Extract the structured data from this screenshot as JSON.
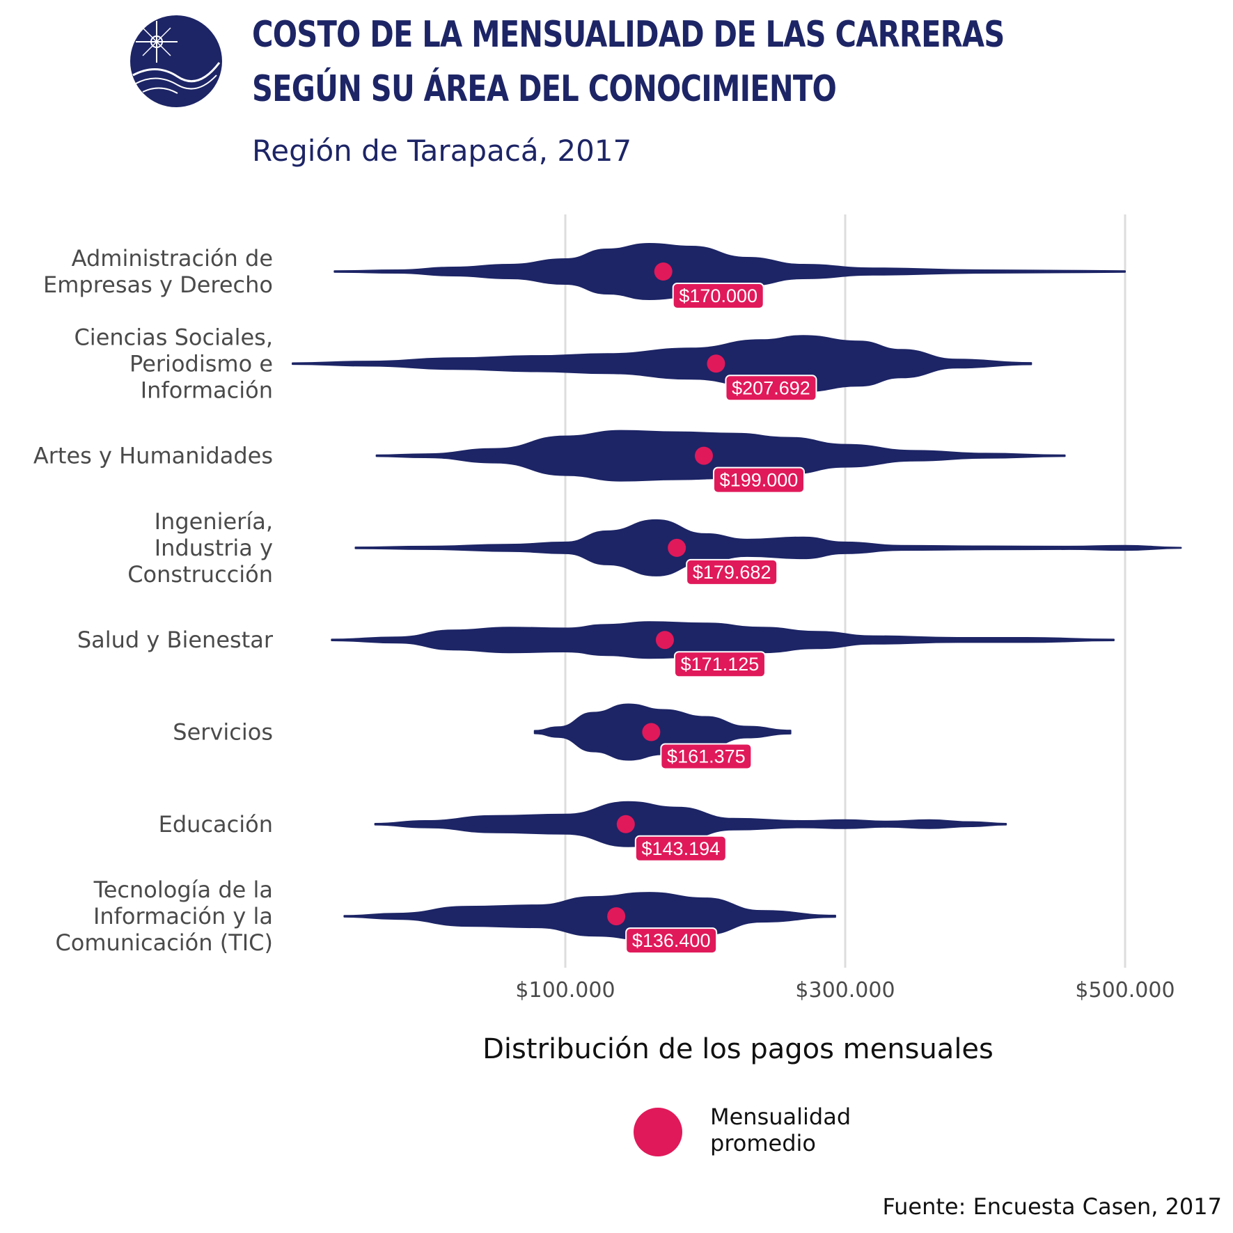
{
  "header": {
    "title_line1": "COSTO DE LA MENSUALIDAD DE LAS CARRERAS",
    "title_line2": "SEGÚN SU ÁREA DEL CONOCIMIENTO",
    "subtitle": "Región de Tarapacá, 2017"
  },
  "colors": {
    "violin": "#1d2566",
    "mean_point": "#e0195a",
    "grid": "#dddddd"
  },
  "legend": {
    "line1": "Mensualidad",
    "line2": "promedio"
  },
  "source": "Fuente: Encuesta Casen, 2017",
  "chart_data": {
    "type": "violin",
    "title": "COSTO DE LA MENSUALIDAD DE LAS CARRERAS SEGÚN SU ÁREA DEL CONOCIMIENTO",
    "subtitle": "Región de Tarapacá, 2017",
    "xlabel": "Distribución de los pagos mensuales",
    "ylabel": "",
    "xticks": [
      100000,
      300000,
      500000
    ],
    "xtick_labels": [
      "$100.000",
      "$300.000",
      "$500.000"
    ],
    "grid": true,
    "legend_position": "bottom",
    "legend_entries": [
      "Mensualidad promedio"
    ],
    "categories": [
      {
        "label_lines": [
          "Administración de",
          "Empresas y Derecho"
        ],
        "min": -65000,
        "max": 500000,
        "mean": 170000,
        "mean_label": "$170.000",
        "density": [
          [
            -65000,
            0.02
          ],
          [
            -20000,
            0.05
          ],
          [
            20000,
            0.15
          ],
          [
            60000,
            0.25
          ],
          [
            100000,
            0.45
          ],
          [
            130000,
            0.8
          ],
          [
            160000,
            1.0
          ],
          [
            190000,
            0.9
          ],
          [
            230000,
            0.5
          ],
          [
            270000,
            0.25
          ],
          [
            320000,
            0.12
          ],
          [
            400000,
            0.05
          ],
          [
            470000,
            0.03
          ],
          [
            500000,
            0.02
          ]
        ]
      },
      {
        "label_lines": [
          "Ciencias Sociales,",
          "Periodismo e",
          "Información"
        ],
        "min": -95000,
        "max": 433000,
        "mean": 207692,
        "mean_label": "$207.692",
        "density": [
          [
            -95000,
            0.02
          ],
          [
            -40000,
            0.08
          ],
          [
            20000,
            0.2
          ],
          [
            80000,
            0.28
          ],
          [
            130000,
            0.35
          ],
          [
            190000,
            0.55
          ],
          [
            240000,
            0.85
          ],
          [
            270000,
            1.0
          ],
          [
            310000,
            0.8
          ],
          [
            340000,
            0.5
          ],
          [
            380000,
            0.15
          ],
          [
            433000,
            0.03
          ]
        ]
      },
      {
        "label_lines": [
          "Artes y Humanidades"
        ],
        "min": -35000,
        "max": 457000,
        "mean": 199000,
        "mean_label": "$199.000",
        "density": [
          [
            -35000,
            0.02
          ],
          [
            0,
            0.06
          ],
          [
            50000,
            0.25
          ],
          [
            100000,
            0.7
          ],
          [
            140000,
            0.9
          ],
          [
            180000,
            0.85
          ],
          [
            220000,
            0.8
          ],
          [
            260000,
            0.65
          ],
          [
            300000,
            0.4
          ],
          [
            350000,
            0.18
          ],
          [
            400000,
            0.08
          ],
          [
            457000,
            0.02
          ]
        ]
      },
      {
        "label_lines": [
          "Ingeniería,",
          "Industria y",
          "Construcción"
        ],
        "min": -50000,
        "max": 540000,
        "mean": 179682,
        "mean_label": "$179.682",
        "density": [
          [
            -50000,
            0.02
          ],
          [
            0,
            0.05
          ],
          [
            60000,
            0.12
          ],
          [
            100000,
            0.2
          ],
          [
            130000,
            0.6
          ],
          [
            165000,
            1.0
          ],
          [
            200000,
            0.5
          ],
          [
            230000,
            0.3
          ],
          [
            270000,
            0.38
          ],
          [
            300000,
            0.2
          ],
          [
            340000,
            0.08
          ],
          [
            400000,
            0.06
          ],
          [
            460000,
            0.05
          ],
          [
            500000,
            0.08
          ],
          [
            540000,
            0.01
          ]
        ]
      },
      {
        "label_lines": [
          "Salud y Bienestar"
        ],
        "min": -67000,
        "max": 492000,
        "mean": 171125,
        "mean_label": "$171.125",
        "density": [
          [
            -67000,
            0.02
          ],
          [
            -20000,
            0.1
          ],
          [
            20000,
            0.35
          ],
          [
            60000,
            0.45
          ],
          [
            100000,
            0.42
          ],
          [
            130000,
            0.55
          ],
          [
            160000,
            0.65
          ],
          [
            200000,
            0.6
          ],
          [
            240000,
            0.45
          ],
          [
            280000,
            0.3
          ],
          [
            320000,
            0.14
          ],
          [
            380000,
            0.08
          ],
          [
            430000,
            0.08
          ],
          [
            492000,
            0.02
          ]
        ]
      },
      {
        "label_lines": [
          "Servicios"
        ],
        "min": 78000,
        "max": 261000,
        "mean": 161375,
        "mean_label": "$161.375",
        "density": [
          [
            78000,
            0.05
          ],
          [
            95000,
            0.18
          ],
          [
            120000,
            0.7
          ],
          [
            145000,
            1.0
          ],
          [
            170000,
            0.8
          ],
          [
            200000,
            0.55
          ],
          [
            230000,
            0.2
          ],
          [
            261000,
            0.06
          ]
        ]
      },
      {
        "label_lines": [
          "Educación"
        ],
        "min": -36000,
        "max": 415000,
        "mean": 143194,
        "mean_label": "$143.194",
        "density": [
          [
            -36000,
            0.02
          ],
          [
            0,
            0.12
          ],
          [
            50000,
            0.3
          ],
          [
            100000,
            0.35
          ],
          [
            145000,
            0.8
          ],
          [
            180000,
            0.6
          ],
          [
            220000,
            0.2
          ],
          [
            270000,
            0.12
          ],
          [
            300000,
            0.15
          ],
          [
            330000,
            0.1
          ],
          [
            360000,
            0.15
          ],
          [
            390000,
            0.08
          ],
          [
            415000,
            0.02
          ]
        ]
      },
      {
        "label_lines": [
          "Tecnología de la",
          "Información y la",
          "Comunicación (TIC)"
        ],
        "min": -58000,
        "max": 293000,
        "mean": 136400,
        "mean_label": "$136.400",
        "density": [
          [
            -58000,
            0.02
          ],
          [
            -20000,
            0.1
          ],
          [
            30000,
            0.35
          ],
          [
            80000,
            0.4
          ],
          [
            120000,
            0.7
          ],
          [
            160000,
            0.85
          ],
          [
            200000,
            0.65
          ],
          [
            240000,
            0.2
          ],
          [
            293000,
            0.03
          ]
        ]
      }
    ]
  }
}
